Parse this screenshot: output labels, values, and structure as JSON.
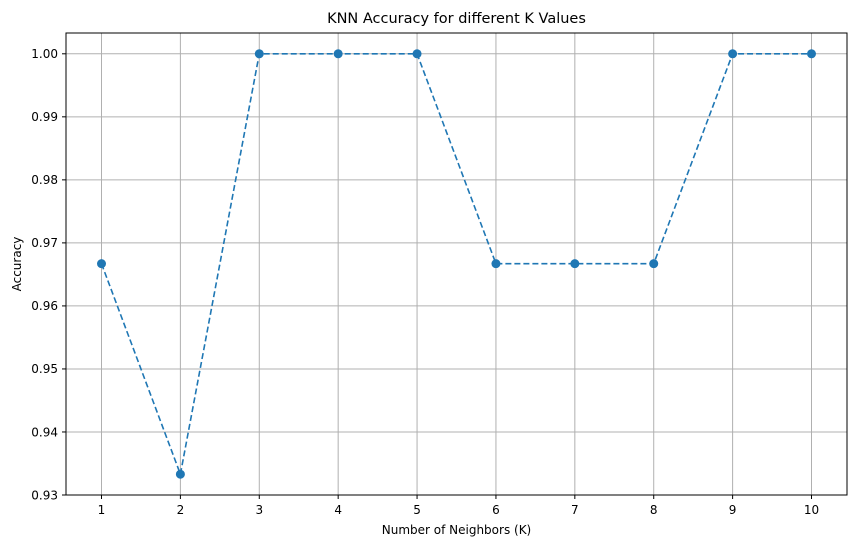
{
  "chart_data": {
    "type": "line",
    "title": "KNN Accuracy for different K Values",
    "xlabel": "Number of Neighbors (K)",
    "ylabel": "Accuracy",
    "x": [
      1,
      2,
      3,
      4,
      5,
      6,
      7,
      8,
      9,
      10
    ],
    "series": [
      {
        "values": [
          0.9667,
          0.9333,
          1.0,
          1.0,
          1.0,
          0.9667,
          0.9667,
          0.9667,
          1.0,
          1.0
        ],
        "color": "#1f77b4",
        "line_style": "dashed",
        "marker": "circle"
      }
    ],
    "xticks": [
      "1",
      "2",
      "3",
      "4",
      "5",
      "6",
      "7",
      "8",
      "9",
      "10"
    ],
    "yticks": [
      "0.93",
      "0.94",
      "0.95",
      "0.96",
      "0.97",
      "0.98",
      "0.99",
      "1.00"
    ],
    "xlim": [
      0.55,
      10.45
    ],
    "ylim": [
      0.93,
      1.0033
    ],
    "grid": true
  }
}
